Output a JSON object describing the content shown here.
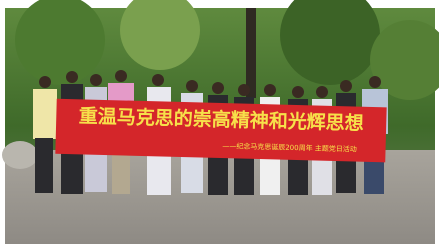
{
  "photo": {
    "banner": {
      "title": "重温马克思的崇高精神和光辉思想",
      "subtitle": "——纪念马克思诞辰200周年  主题党日活动"
    }
  }
}
